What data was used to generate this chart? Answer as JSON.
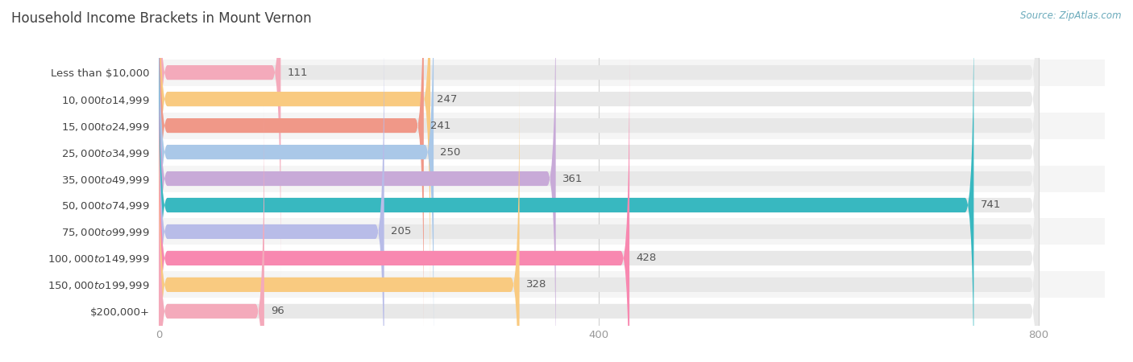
{
  "title": "Household Income Brackets in Mount Vernon",
  "source": "Source: ZipAtlas.com",
  "categories": [
    "Less than $10,000",
    "$10,000 to $14,999",
    "$15,000 to $24,999",
    "$25,000 to $34,999",
    "$35,000 to $49,999",
    "$50,000 to $74,999",
    "$75,000 to $99,999",
    "$100,000 to $149,999",
    "$150,000 to $199,999",
    "$200,000+"
  ],
  "values": [
    111,
    247,
    241,
    250,
    361,
    741,
    205,
    428,
    328,
    96
  ],
  "bar_colors": [
    "#f4aabb",
    "#f9ca80",
    "#f09888",
    "#aac8e8",
    "#c8aad8",
    "#38b8c0",
    "#b8bce8",
    "#f888b0",
    "#f9ca80",
    "#f4aabb"
  ],
  "bar_bg_color": "#e8e8e8",
  "xlim_max": 800,
  "xticks": [
    0,
    400,
    800
  ],
  "background_color": "#ffffff",
  "row_bg_colors": [
    "#f5f5f5",
    "#ffffff"
  ],
  "title_fontsize": 12,
  "label_fontsize": 9.5,
  "value_fontsize": 9.5
}
